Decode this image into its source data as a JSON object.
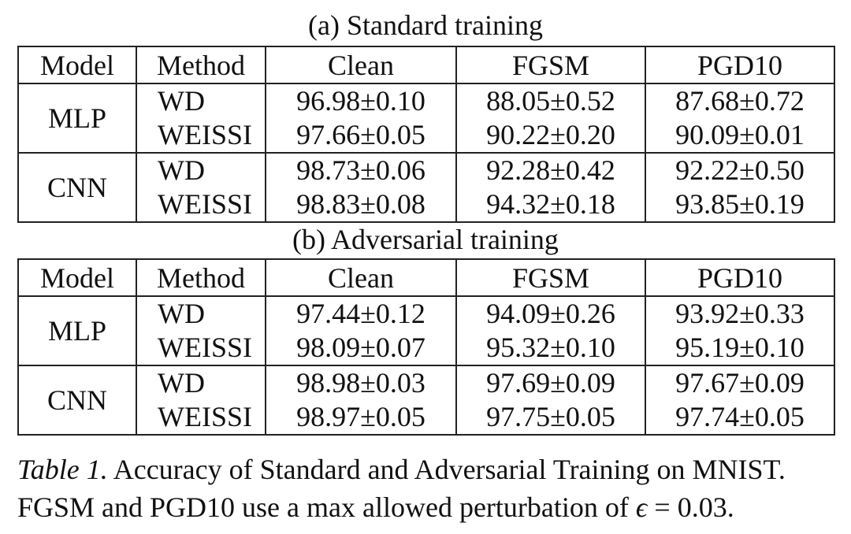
{
  "tables": [
    {
      "subcaption": "(a) Standard training",
      "headers": [
        "Model",
        "Method",
        "Clean",
        "FGSM",
        "PGD10"
      ],
      "groups": [
        {
          "model": "MLP",
          "rows": [
            {
              "method": "WD",
              "clean": "96.98±0.10",
              "fgsm": "88.05±0.52",
              "pgd10": "87.68±0.72"
            },
            {
              "method": "WEISSI",
              "clean": "97.66±0.05",
              "fgsm": "90.22±0.20",
              "pgd10": "90.09±0.01"
            }
          ]
        },
        {
          "model": "CNN",
          "rows": [
            {
              "method": "WD",
              "clean": "98.73±0.06",
              "fgsm": "92.28±0.42",
              "pgd10": "92.22±0.50"
            },
            {
              "method": "WEISSI",
              "clean": "98.83±0.08",
              "fgsm": "94.32±0.18",
              "pgd10": "93.85±0.19"
            }
          ]
        }
      ]
    },
    {
      "subcaption": "(b) Adversarial training",
      "headers": [
        "Model",
        "Method",
        "Clean",
        "FGSM",
        "PGD10"
      ],
      "groups": [
        {
          "model": "MLP",
          "rows": [
            {
              "method": "WD",
              "clean": "97.44±0.12",
              "fgsm": "94.09±0.26",
              "pgd10": "93.92±0.33"
            },
            {
              "method": "WEISSI",
              "clean": "98.09±0.07",
              "fgsm": "95.32±0.10",
              "pgd10": "95.19±0.10"
            }
          ]
        },
        {
          "model": "CNN",
          "rows": [
            {
              "method": "WD",
              "clean": "98.98±0.03",
              "fgsm": "97.69±0.09",
              "pgd10": "97.67±0.09"
            },
            {
              "method": "WEISSI",
              "clean": "98.97±0.05",
              "fgsm": "97.75±0.05",
              "pgd10": "97.74±0.05"
            }
          ]
        }
      ]
    }
  ],
  "caption": {
    "label": "Table 1.",
    "line1": " Accuracy of Standard and Adversarial Training on MNIST.",
    "line2_pre": "FGSM and PGD10 use a max allowed perturbation of ",
    "epsilon": "ϵ",
    "line2_post": " = 0.03."
  }
}
